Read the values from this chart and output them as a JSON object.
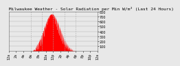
{
  "title": "Milwaukee Weather - Solar Radiation per Min W/m² (Last 24 Hours)",
  "background_color": "#e8e8e8",
  "plot_bg_color": "#e8e8e8",
  "grid_color": "#aaaaaa",
  "area_color": "#ff0000",
  "ylim": [
    0,
    800
  ],
  "yticks": [
    100,
    200,
    300,
    400,
    500,
    600,
    700,
    800
  ],
  "num_points": 1440,
  "vgrid_positions": [
    360,
    540,
    720,
    900,
    1080
  ],
  "xtick_labels": [
    "12a",
    "2a",
    "4a",
    "6a",
    "8a",
    "10a",
    "12p",
    "2p",
    "4p",
    "6p",
    "8p",
    "10p",
    "12a"
  ],
  "xtick_positions": [
    0,
    120,
    240,
    360,
    480,
    600,
    720,
    840,
    960,
    1080,
    1200,
    1320,
    1440
  ],
  "title_fontsize": 4.5,
  "tick_fontsize": 3.5
}
